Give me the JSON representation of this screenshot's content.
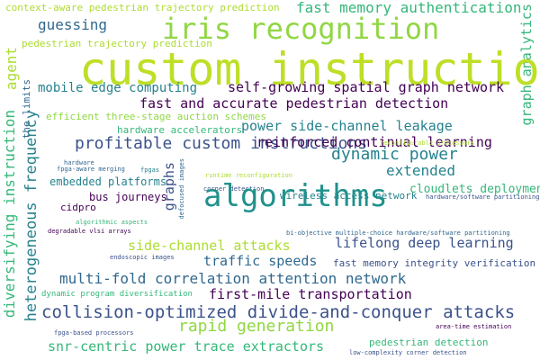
{
  "colors": {
    "background": "#ffffff",
    "palette": [
      "#440154",
      "#3b528b",
      "#31688e",
      "#21918c",
      "#26828e",
      "#35b779",
      "#90d743",
      "#bddf26",
      "#addc30"
    ]
  },
  "words": {
    "context_aware": "context-aware pedestrian trajectory prediction",
    "fast_memory_auth": "fast memory authentication",
    "graph_analytics": "graph analytics",
    "iris_recognition": "iris recognition",
    "guessing": "guessing",
    "pedestrian_traj": "pedestrian trajectory prediction",
    "custom_instructions": "custom instructions",
    "agent": "agent",
    "the_limits": "the limits",
    "mobile_edge": "mobile edge computing",
    "self_growing": "self-growing spatial graph network",
    "fast_accurate": "fast and accurate pedestrian detection",
    "auction": "efficient three-stage auction schemes",
    "hw_accel": "hardware accelerators",
    "power_leakage": "power side-channel leakage",
    "diversifying": "diversifying instruction",
    "het_freq": "heterogeneous frequency",
    "profitable": "profitable custom instructions",
    "reinforced": "reinforced continual learning",
    "hardware": "hardware",
    "fpga_merging": "fpga-aware merging",
    "fpgas": "fpgas",
    "defocused": "defocused images",
    "graphs": "graphs",
    "reconfig_proc": "reconfigurable processors",
    "dynamic_power": "dynamic power",
    "embedded": "embedded platforms",
    "runtime_reconf": "runtime reconfiguration",
    "corner_det": "corner detection",
    "extended": "extended",
    "bus_journeys": "bus journeys",
    "wireless": "wireless access network",
    "cidpro": "cidpro",
    "cloudlets": "cloudlets deployment",
    "hw_sw_part": "hardware/software partitioning",
    "algorithms": "algorithms",
    "algo_aspects": "algorithmic aspects",
    "degradable": "degradable vlsi arrays",
    "bi_objective": "bi-objective multiple-choice hardware/software partitioning",
    "side_channel": "side-channel attacks",
    "lifelong": "lifelong deep learning",
    "endoscopic": "endoscopic images",
    "traffic_speeds": "traffic speeds",
    "fast_mem_integrity": "fast memory integrity verification",
    "multi_fold": "multi-fold correlation attention network",
    "dynamic_prog": "dynamic program diversification",
    "first_mile": "first-mile transportation",
    "collision": "collision-optimized divide-and-conquer attacks",
    "rapid_gen": "rapid generation",
    "area_time": "area-time estimation",
    "fpga_proc": "fpga-based processors",
    "snr_centric": "snr-centric power trace extractors",
    "pedestrian_det": "pedestrian detection",
    "low_complexity": "low-complexity corner detection"
  }
}
